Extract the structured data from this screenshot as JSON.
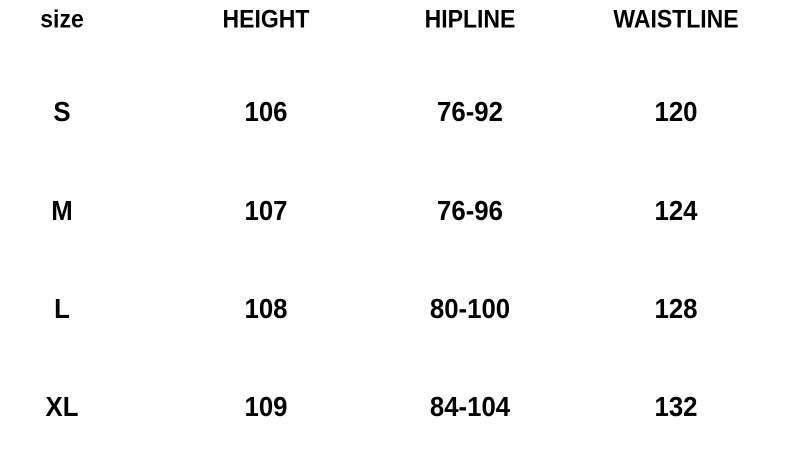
{
  "headers": [
    "size",
    "HEIGHT",
    "HIPLINE",
    "WAISTLINE"
  ],
  "rows": [
    [
      "S",
      "106",
      "76-92",
      "120"
    ],
    [
      "M",
      "107",
      "76-96",
      "124"
    ],
    [
      "L",
      "108",
      "80-100",
      "128"
    ],
    [
      "XL",
      "109",
      "84-104",
      "132"
    ]
  ]
}
